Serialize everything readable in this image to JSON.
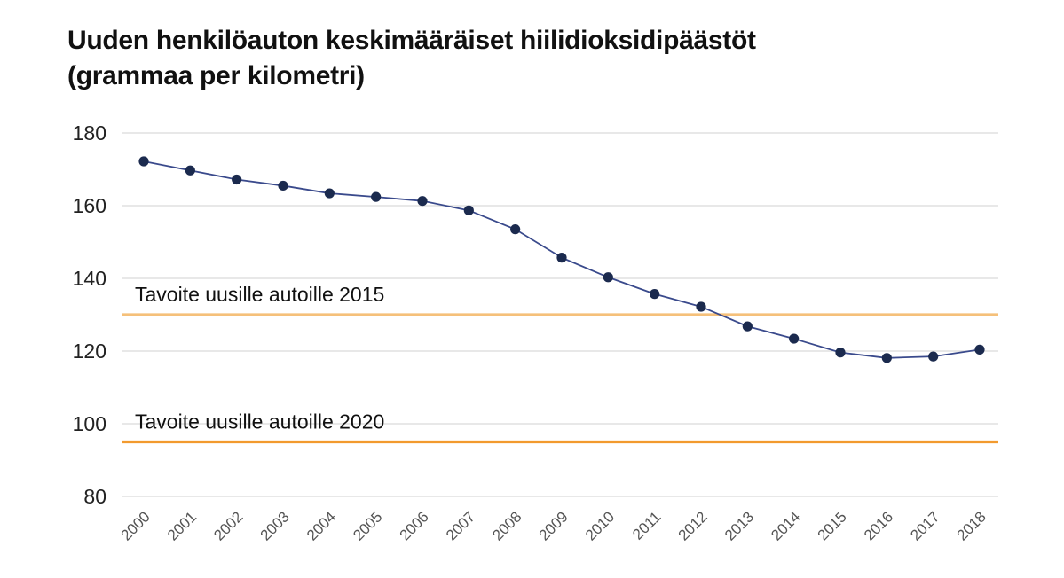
{
  "title_line1": "Uuden henkilöauton keskimääräiset hiilidioksidipäästöt",
  "title_line2": "(grammaa per kilometri)",
  "chart_data": {
    "type": "line",
    "title": "Uuden henkilöauton keskimääräiset hiilidioksidipäästöt (grammaa per kilometri)",
    "xlabel": "",
    "ylabel": "",
    "ylim": [
      80,
      180
    ],
    "yticks": [
      180,
      160,
      140,
      120,
      100,
      80
    ],
    "grid": true,
    "categories": [
      "2000",
      "2001",
      "2002",
      "2003",
      "2004",
      "2005",
      "2006",
      "2007",
      "2008",
      "2009",
      "2010",
      "2011",
      "2012",
      "2013",
      "2014",
      "2015",
      "2016",
      "2017",
      "2018"
    ],
    "series": [
      {
        "values": [
          172.2,
          169.7,
          167.2,
          165.5,
          163.4,
          162.4,
          161.3,
          158.7,
          153.5,
          145.7,
          140.3,
          135.7,
          132.2,
          126.8,
          123.4,
          119.6,
          118.1,
          118.5,
          120.4
        ],
        "color": "#1b2a4e"
      }
    ],
    "reference_lines": [
      {
        "label": "Tavoite uusille autoille 2015",
        "value": 130,
        "color": "#f5c07a"
      },
      {
        "label": "Tavoite uusille autoille 2020",
        "value": 95,
        "color": "#f29a2e"
      }
    ],
    "grid_color": "#d9d9d9"
  }
}
